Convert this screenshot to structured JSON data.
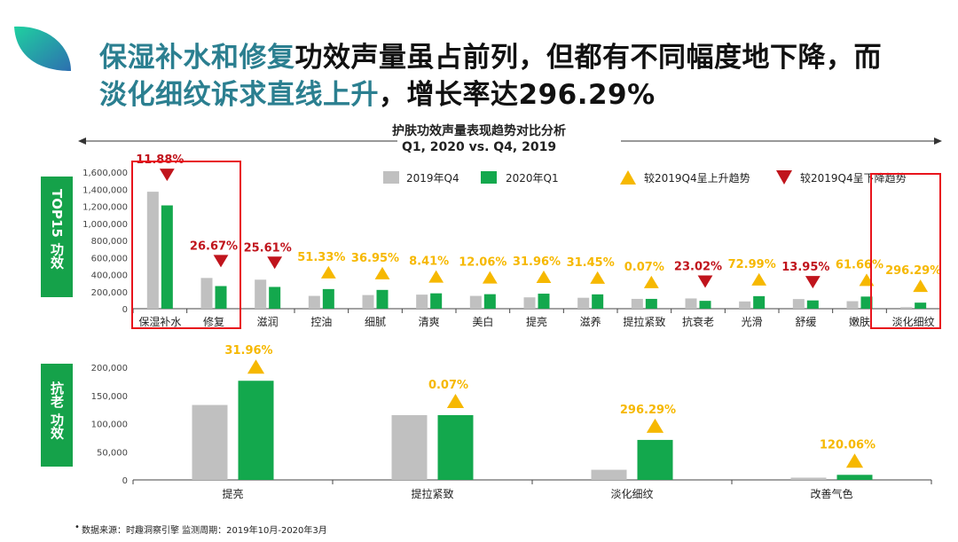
{
  "header": {
    "title_line1_highlight": "保湿补水和修复",
    "title_line1_rest": "功效声量虽占前列，但都有不同幅度地下降，而",
    "title_line2_highlight": "淡化细纹诉求直线上升",
    "title_line2_rest": "，增长率达296.29%"
  },
  "chart_header": {
    "title": "护肤功效声量表现趋势对比分析",
    "subtitle": "Q1, 2020 vs. Q4, 2019"
  },
  "side_labels": {
    "top15": "TOP15 功效",
    "antiaging": "抗老 功效"
  },
  "legend": {
    "prev": "2019年Q4",
    "curr": "2020年Q1",
    "up": "较2019Q4呈上升趋势",
    "down": "较2019Q4呈下降趋势"
  },
  "colors": {
    "prev": "#c0c0c0",
    "curr": "#13a84d",
    "up": "#f6b800",
    "down": "#c0141c",
    "highlight_box": "#e8141c",
    "title_highlight": "#2b7f90"
  },
  "footnote": "数据来源：时趣洞察引擎   监测周期：2019年10月-2020年3月",
  "chart_data": [
    {
      "type": "bar",
      "title": "TOP15 功效",
      "categories": [
        "保湿补水",
        "修复",
        "滋润",
        "控油",
        "细腻",
        "清爽",
        "美白",
        "提亮",
        "滋养",
        "提拉紧致",
        "抗衰老",
        "光滑",
        "舒缓",
        "嫩肤",
        "淡化细纹"
      ],
      "series": [
        {
          "name": "2019年Q4",
          "values": [
            1370000,
            360000,
            340000,
            150000,
            160000,
            165000,
            150000,
            133000,
            128000,
            115000,
            120000,
            85000,
            113000,
            88000,
            18000
          ]
        },
        {
          "name": "2020年Q1",
          "values": [
            1210000,
            265000,
            255000,
            230000,
            220000,
            180000,
            170000,
            176000,
            168000,
            115000,
            92000,
            147000,
            97000,
            142000,
            71000
          ]
        }
      ],
      "change_labels": [
        "11.88%",
        "26.67%",
        "25.61%",
        "51.33%",
        "36.95%",
        "8.41%",
        "12.06%",
        "31.96%",
        "31.45%",
        "0.07%",
        "23.02%",
        "72.99%",
        "13.95%",
        "61.66%",
        "296.29%"
      ],
      "trend": [
        "down",
        "down",
        "down",
        "up",
        "up",
        "up",
        "up",
        "up",
        "up",
        "up",
        "down",
        "up",
        "down",
        "up",
        "up"
      ],
      "yticks": [
        "0",
        "200,000",
        "400,000",
        "600,000",
        "800,000",
        "1,000,000",
        "1,200,000",
        "1,400,000",
        "1,600,000"
      ],
      "ylim": [
        0,
        1600000
      ],
      "highlighted": [
        "保湿补水",
        "淡化细纹"
      ]
    },
    {
      "type": "bar",
      "title": "抗老 功效",
      "categories": [
        "提亮",
        "提拉紧致",
        "淡化细纹",
        "改善气色"
      ],
      "series": [
        {
          "name": "2019年Q4",
          "values": [
            133000,
            115000,
            18000,
            4000
          ]
        },
        {
          "name": "2020年Q1",
          "values": [
            176000,
            115000,
            71000,
            9000
          ]
        }
      ],
      "change_labels": [
        "31.96%",
        "0.07%",
        "296.29%",
        "120.06%"
      ],
      "trend": [
        "up",
        "up",
        "up",
        "up"
      ],
      "yticks": [
        "0",
        "50,000",
        "100,000",
        "150,000",
        "200,000"
      ],
      "ylim": [
        0,
        200000
      ]
    }
  ]
}
